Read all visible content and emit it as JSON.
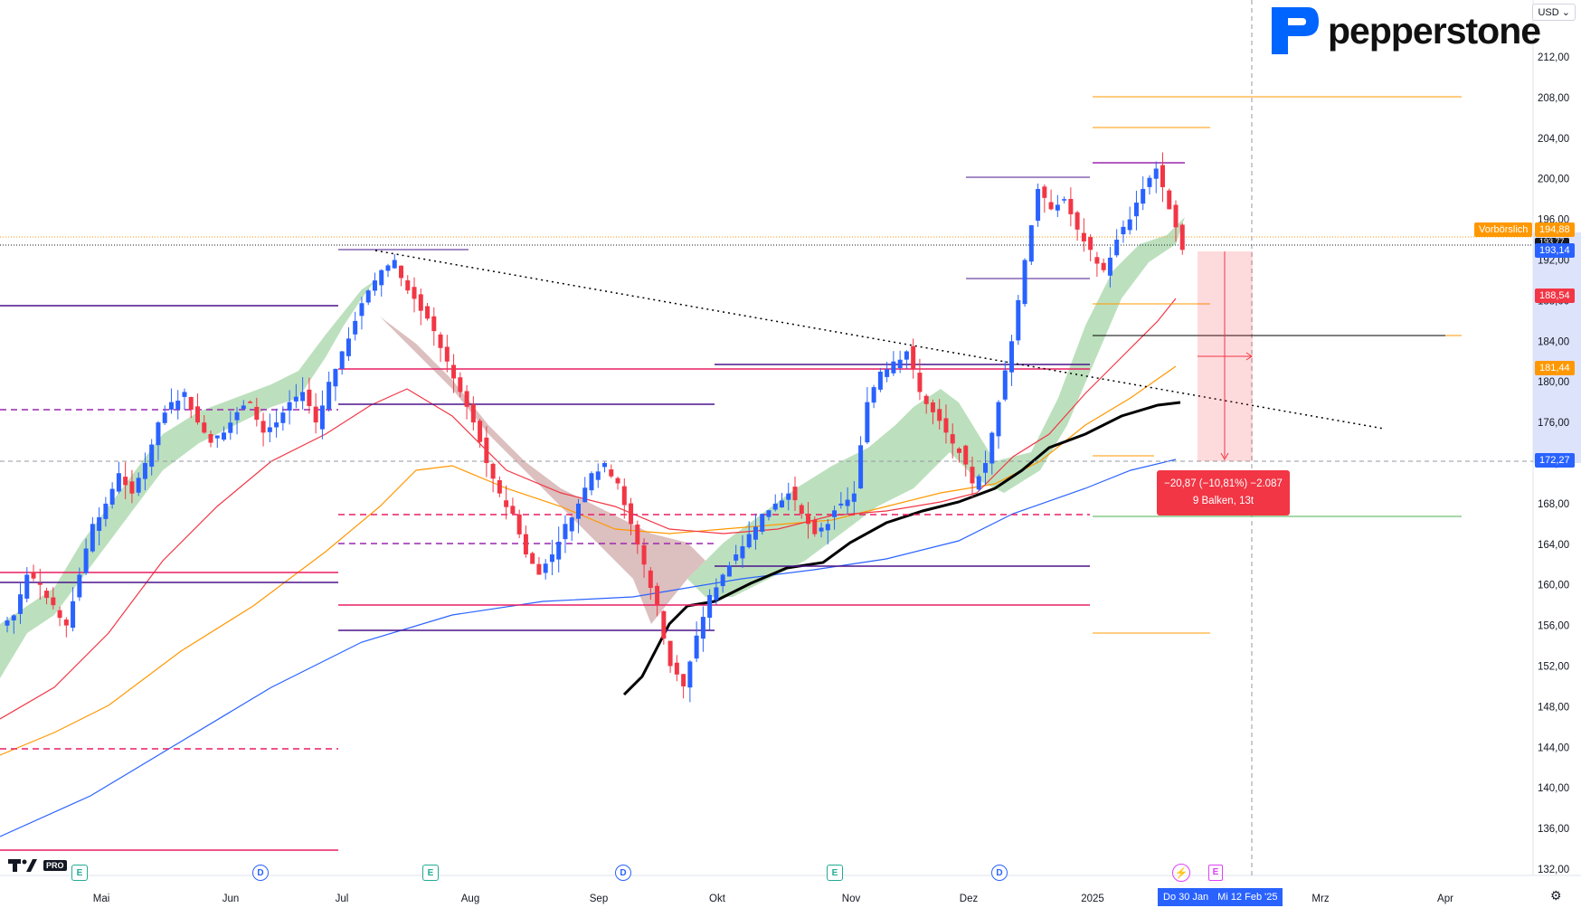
{
  "header": {
    "currency": "USD",
    "brand": "pepperstone"
  },
  "price_axis": {
    "ticks": [
      "212,00",
      "208,00",
      "204,00",
      "200,00",
      "196,00",
      "192,00",
      "188,00",
      "184,00",
      "180,00",
      "176,00",
      "172,00",
      "168,00",
      "164,00",
      "160,00",
      "156,00",
      "152,00",
      "148,00",
      "144,00",
      "140,00",
      "136,00",
      "132,00"
    ],
    "tags": {
      "premarket_label": "Vorbörslich",
      "premarket_value": "194,88",
      "last_price": "193,14",
      "prev_close": "193,77",
      "ma_red": "188,54",
      "ma_orange": "181,44",
      "ma_blue": "172,27"
    }
  },
  "time_axis": {
    "labels": [
      "Mai",
      "Jun",
      "Jul",
      "Aug",
      "Sep",
      "Okt",
      "Nov",
      "Dez",
      "2025",
      "Mrz",
      "Apr"
    ],
    "range_start": "Do 30 Jan",
    "range_end": "Mi 12 Feb '25"
  },
  "measure": {
    "line1": "−20,87 (−10,81%) −2.087",
    "line2": "9 Balken, 13t"
  },
  "events": [
    {
      "type": "E",
      "label": "E"
    },
    {
      "type": "D",
      "label": "D"
    },
    {
      "type": "E",
      "label": "E"
    },
    {
      "type": "D",
      "label": "D"
    },
    {
      "type": "E",
      "label": "E"
    },
    {
      "type": "D",
      "label": "D"
    }
  ],
  "tv": {
    "pro": "PRO"
  },
  "colors": {
    "up": "#2962ff",
    "down": "#f23645",
    "ma_red": "#f23645",
    "ma_orange": "#ff9800",
    "ma_blue": "#2962ff",
    "ma_black": "#000000",
    "cloud_green": "#a5d6a7",
    "cloud_red": "#d7a8a8",
    "hline_purple": "#4a148c",
    "hline_pink": "#e91e63",
    "hline_orange": "#ff9800",
    "brand_blue": "#0064ff"
  },
  "chart_data": {
    "type": "candlestick",
    "title": "",
    "xlabel": "",
    "ylabel": "",
    "ylim": [
      130,
      214
    ],
    "x_range": [
      "Apr 2024",
      "Apr 2025"
    ],
    "grid": false,
    "series_hint": "daily OHLC, approx",
    "closes": [
      157,
      161,
      160,
      158,
      156,
      161,
      166,
      168,
      171,
      169,
      172,
      176,
      178,
      179,
      176,
      174,
      175,
      177,
      178,
      175,
      176,
      178,
      179,
      176,
      180,
      183,
      186,
      189,
      191,
      192,
      189,
      187,
      185,
      182,
      179,
      176,
      172,
      169,
      167,
      163,
      161,
      163,
      166,
      168,
      171,
      172,
      170,
      166,
      162,
      158,
      152,
      150,
      155,
      159,
      161,
      163,
      165,
      167,
      168,
      169,
      167,
      165,
      166,
      168,
      169,
      178,
      181,
      182,
      183,
      179,
      177,
      175,
      173,
      170,
      172,
      178,
      184,
      192,
      199,
      197,
      198,
      195,
      193,
      191,
      194,
      196,
      199,
      201,
      197,
      193
    ]
  }
}
